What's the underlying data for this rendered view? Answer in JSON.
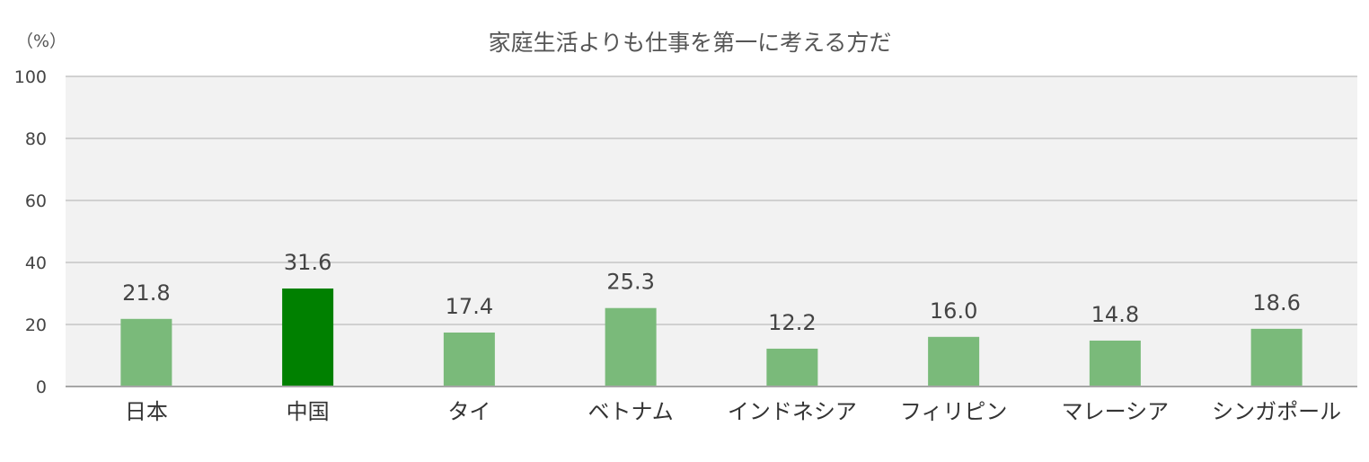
{
  "chart_data": {
    "type": "bar",
    "title": "家庭生活よりも仕事を第一に考える方だ",
    "unit_label": "（%）",
    "categories": [
      "日本",
      "中国",
      "タイ",
      "ベトナム",
      "インドネシア",
      "フィリピン",
      "マレーシア",
      "シンガポール"
    ],
    "values": [
      21.8,
      31.6,
      17.4,
      25.3,
      12.2,
      16.0,
      14.8,
      18.6
    ],
    "value_labels": [
      "21.8",
      "31.6",
      "17.4",
      "25.3",
      "12.2",
      "16.0",
      "14.8",
      "18.6"
    ],
    "highlight_index": 1,
    "ylim": [
      0,
      100
    ],
    "yticks": [
      "0",
      "20",
      "40",
      "60",
      "80",
      "100"
    ],
    "xlabel": "",
    "ylabel": "",
    "grid": true,
    "legend": "none"
  },
  "colors": {
    "bar": "#7aba7a",
    "bar_highlight": "#008000",
    "plot_background": "#f2f2f2",
    "gridline": "#c4c4c4",
    "axis": "#a6a6a6"
  }
}
